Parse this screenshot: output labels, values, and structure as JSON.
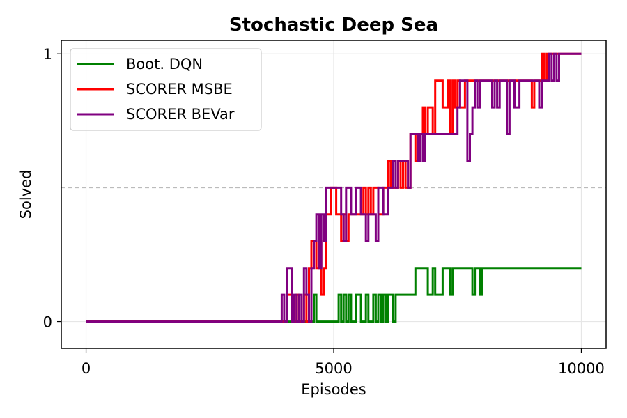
{
  "chart_data": {
    "type": "line",
    "title": "Stochastic Deep Sea",
    "xlabel": "Episodes",
    "ylabel": "Solved",
    "xlim": [
      -500,
      10500
    ],
    "ylim": [
      -0.1,
      1.05
    ],
    "xticks": [
      0,
      5000,
      10000
    ],
    "xtick_labels": [
      "0",
      "5000",
      "10000"
    ],
    "yticks": [
      0,
      1
    ],
    "ytick_labels": [
      "0",
      "1"
    ],
    "grid": true,
    "reference_line": {
      "y": 0.5,
      "style": "dashed",
      "color": "#bbbbbb"
    },
    "legend_position": "upper-left",
    "series": [
      {
        "name": "Boot. DQN",
        "color": "#008000",
        "points": [
          [
            0,
            0
          ],
          [
            4600,
            0
          ],
          [
            4600,
            0.1
          ],
          [
            4650,
            0.1
          ],
          [
            4650,
            0
          ],
          [
            5100,
            0
          ],
          [
            5100,
            0.1
          ],
          [
            5150,
            0.1
          ],
          [
            5150,
            0
          ],
          [
            5200,
            0
          ],
          [
            5200,
            0.1
          ],
          [
            5250,
            0.1
          ],
          [
            5250,
            0
          ],
          [
            5300,
            0
          ],
          [
            5300,
            0.1
          ],
          [
            5350,
            0.1
          ],
          [
            5350,
            0
          ],
          [
            5450,
            0
          ],
          [
            5450,
            0.1
          ],
          [
            5550,
            0.1
          ],
          [
            5550,
            0
          ],
          [
            5650,
            0
          ],
          [
            5650,
            0.1
          ],
          [
            5700,
            0.1
          ],
          [
            5700,
            0
          ],
          [
            5800,
            0
          ],
          [
            5800,
            0.1
          ],
          [
            5850,
            0.1
          ],
          [
            5850,
            0
          ],
          [
            5900,
            0
          ],
          [
            5900,
            0.1
          ],
          [
            5950,
            0.1
          ],
          [
            5950,
            0
          ],
          [
            6000,
            0
          ],
          [
            6000,
            0.1
          ],
          [
            6050,
            0.1
          ],
          [
            6050,
            0
          ],
          [
            6100,
            0
          ],
          [
            6100,
            0.1
          ],
          [
            6200,
            0.1
          ],
          [
            6200,
            0
          ],
          [
            6250,
            0
          ],
          [
            6250,
            0.1
          ],
          [
            6650,
            0.1
          ],
          [
            6650,
            0.2
          ],
          [
            6900,
            0.2
          ],
          [
            6900,
            0.1
          ],
          [
            7000,
            0.1
          ],
          [
            7000,
            0.2
          ],
          [
            7050,
            0.2
          ],
          [
            7050,
            0.1
          ],
          [
            7200,
            0.1
          ],
          [
            7200,
            0.2
          ],
          [
            7350,
            0.2
          ],
          [
            7350,
            0.1
          ],
          [
            7400,
            0.1
          ],
          [
            7400,
            0.2
          ],
          [
            7800,
            0.2
          ],
          [
            7800,
            0.1
          ],
          [
            7850,
            0.1
          ],
          [
            7850,
            0.2
          ],
          [
            7950,
            0.2
          ],
          [
            7950,
            0.1
          ],
          [
            8000,
            0.1
          ],
          [
            8000,
            0.2
          ],
          [
            10000,
            0.2
          ]
        ]
      },
      {
        "name": "SCORER MSBE",
        "color": "#ff0000",
        "points": [
          [
            0,
            0
          ],
          [
            4050,
            0
          ],
          [
            4050,
            0.1
          ],
          [
            4150,
            0.1
          ],
          [
            4150,
            0
          ],
          [
            4250,
            0
          ],
          [
            4250,
            0.1
          ],
          [
            4300,
            0.1
          ],
          [
            4300,
            0
          ],
          [
            4400,
            0
          ],
          [
            4400,
            0.1
          ],
          [
            4450,
            0.1
          ],
          [
            4450,
            0
          ],
          [
            4500,
            0
          ],
          [
            4500,
            0.2
          ],
          [
            4550,
            0.2
          ],
          [
            4550,
            0.3
          ],
          [
            4650,
            0.3
          ],
          [
            4650,
            0.2
          ],
          [
            4700,
            0.2
          ],
          [
            4700,
            0.3
          ],
          [
            4750,
            0.3
          ],
          [
            4750,
            0.1
          ],
          [
            4800,
            0.1
          ],
          [
            4800,
            0.2
          ],
          [
            4850,
            0.2
          ],
          [
            4850,
            0.4
          ],
          [
            4950,
            0.4
          ],
          [
            4950,
            0.5
          ],
          [
            5050,
            0.5
          ],
          [
            5050,
            0.4
          ],
          [
            5150,
            0.4
          ],
          [
            5150,
            0.3
          ],
          [
            5200,
            0.3
          ],
          [
            5200,
            0.4
          ],
          [
            5250,
            0.4
          ],
          [
            5250,
            0.3
          ],
          [
            5300,
            0.3
          ],
          [
            5300,
            0.4
          ],
          [
            5600,
            0.4
          ],
          [
            5600,
            0.5
          ],
          [
            5650,
            0.5
          ],
          [
            5650,
            0.4
          ],
          [
            5700,
            0.4
          ],
          [
            5700,
            0.5
          ],
          [
            5750,
            0.5
          ],
          [
            5750,
            0.4
          ],
          [
            5800,
            0.4
          ],
          [
            5800,
            0.5
          ],
          [
            5900,
            0.5
          ],
          [
            5900,
            0.4
          ],
          [
            6000,
            0.4
          ],
          [
            6000,
            0.5
          ],
          [
            6100,
            0.5
          ],
          [
            6100,
            0.6
          ],
          [
            6150,
            0.6
          ],
          [
            6150,
            0.5
          ],
          [
            6300,
            0.5
          ],
          [
            6300,
            0.6
          ],
          [
            6350,
            0.6
          ],
          [
            6350,
            0.5
          ],
          [
            6400,
            0.5
          ],
          [
            6400,
            0.6
          ],
          [
            6450,
            0.6
          ],
          [
            6450,
            0.5
          ],
          [
            6550,
            0.5
          ],
          [
            6550,
            0.7
          ],
          [
            6650,
            0.7
          ],
          [
            6650,
            0.6
          ],
          [
            6700,
            0.6
          ],
          [
            6700,
            0.7
          ],
          [
            6800,
            0.7
          ],
          [
            6800,
            0.8
          ],
          [
            6850,
            0.8
          ],
          [
            6850,
            0.7
          ],
          [
            6900,
            0.7
          ],
          [
            6900,
            0.8
          ],
          [
            7000,
            0.8
          ],
          [
            7000,
            0.7
          ],
          [
            7050,
            0.7
          ],
          [
            7050,
            0.9
          ],
          [
            7200,
            0.9
          ],
          [
            7200,
            0.8
          ],
          [
            7300,
            0.8
          ],
          [
            7300,
            0.9
          ],
          [
            7350,
            0.9
          ],
          [
            7350,
            0.7
          ],
          [
            7400,
            0.7
          ],
          [
            7400,
            0.9
          ],
          [
            7450,
            0.9
          ],
          [
            7450,
            0.8
          ],
          [
            7500,
            0.8
          ],
          [
            7500,
            0.9
          ],
          [
            7550,
            0.9
          ],
          [
            7550,
            0.8
          ],
          [
            7650,
            0.8
          ],
          [
            7650,
            0.9
          ],
          [
            9000,
            0.9
          ],
          [
            9000,
            0.8
          ],
          [
            9050,
            0.8
          ],
          [
            9050,
            0.9
          ],
          [
            9200,
            0.9
          ],
          [
            9200,
            1
          ],
          [
            9250,
            1
          ],
          [
            9250,
            0.9
          ],
          [
            9300,
            0.9
          ],
          [
            9300,
            1
          ],
          [
            10000,
            1
          ]
        ]
      },
      {
        "name": "SCORER BEVar",
        "color": "#800080",
        "points": [
          [
            0,
            0
          ],
          [
            3950,
            0
          ],
          [
            3950,
            0.1
          ],
          [
            4000,
            0.1
          ],
          [
            4000,
            0
          ],
          [
            4050,
            0
          ],
          [
            4050,
            0.2
          ],
          [
            4150,
            0.2
          ],
          [
            4150,
            0
          ],
          [
            4200,
            0
          ],
          [
            4200,
            0.1
          ],
          [
            4250,
            0.1
          ],
          [
            4250,
            0
          ],
          [
            4300,
            0
          ],
          [
            4300,
            0.1
          ],
          [
            4350,
            0.1
          ],
          [
            4350,
            0
          ],
          [
            4400,
            0
          ],
          [
            4400,
            0.2
          ],
          [
            4450,
            0.2
          ],
          [
            4450,
            0.1
          ],
          [
            4500,
            0.1
          ],
          [
            4500,
            0
          ],
          [
            4550,
            0
          ],
          [
            4550,
            0.2
          ],
          [
            4600,
            0.2
          ],
          [
            4600,
            0.3
          ],
          [
            4650,
            0.3
          ],
          [
            4650,
            0.4
          ],
          [
            4700,
            0.4
          ],
          [
            4700,
            0.2
          ],
          [
            4750,
            0.2
          ],
          [
            4750,
            0.4
          ],
          [
            4800,
            0.4
          ],
          [
            4800,
            0.3
          ],
          [
            4850,
            0.3
          ],
          [
            4850,
            0.5
          ],
          [
            5150,
            0.5
          ],
          [
            5150,
            0.4
          ],
          [
            5200,
            0.4
          ],
          [
            5200,
            0.3
          ],
          [
            5250,
            0.3
          ],
          [
            5250,
            0.5
          ],
          [
            5350,
            0.5
          ],
          [
            5350,
            0.4
          ],
          [
            5450,
            0.4
          ],
          [
            5450,
            0.5
          ],
          [
            5550,
            0.5
          ],
          [
            5550,
            0.4
          ],
          [
            5650,
            0.4
          ],
          [
            5650,
            0.3
          ],
          [
            5700,
            0.3
          ],
          [
            5700,
            0.4
          ],
          [
            5850,
            0.4
          ],
          [
            5850,
            0.3
          ],
          [
            5900,
            0.3
          ],
          [
            5900,
            0.5
          ],
          [
            6000,
            0.5
          ],
          [
            6000,
            0.4
          ],
          [
            6100,
            0.4
          ],
          [
            6100,
            0.5
          ],
          [
            6200,
            0.5
          ],
          [
            6200,
            0.6
          ],
          [
            6250,
            0.6
          ],
          [
            6250,
            0.5
          ],
          [
            6300,
            0.5
          ],
          [
            6300,
            0.6
          ],
          [
            6500,
            0.6
          ],
          [
            6500,
            0.5
          ],
          [
            6550,
            0.5
          ],
          [
            6550,
            0.7
          ],
          [
            6700,
            0.7
          ],
          [
            6700,
            0.6
          ],
          [
            6750,
            0.6
          ],
          [
            6750,
            0.7
          ],
          [
            6800,
            0.7
          ],
          [
            6800,
            0.6
          ],
          [
            6850,
            0.6
          ],
          [
            6850,
            0.7
          ],
          [
            7500,
            0.7
          ],
          [
            7500,
            0.8
          ],
          [
            7550,
            0.8
          ],
          [
            7550,
            0.9
          ],
          [
            7700,
            0.9
          ],
          [
            7700,
            0.6
          ],
          [
            7750,
            0.6
          ],
          [
            7750,
            0.7
          ],
          [
            7800,
            0.7
          ],
          [
            7800,
            0.8
          ],
          [
            7850,
            0.8
          ],
          [
            7850,
            0.9
          ],
          [
            7900,
            0.9
          ],
          [
            7900,
            0.8
          ],
          [
            7950,
            0.8
          ],
          [
            7950,
            0.9
          ],
          [
            8200,
            0.9
          ],
          [
            8200,
            0.8
          ],
          [
            8250,
            0.8
          ],
          [
            8250,
            0.9
          ],
          [
            8300,
            0.9
          ],
          [
            8300,
            0.8
          ],
          [
            8350,
            0.8
          ],
          [
            8350,
            0.9
          ],
          [
            8500,
            0.9
          ],
          [
            8500,
            0.7
          ],
          [
            8550,
            0.7
          ],
          [
            8550,
            0.9
          ],
          [
            8650,
            0.9
          ],
          [
            8650,
            0.8
          ],
          [
            8750,
            0.8
          ],
          [
            8750,
            0.9
          ],
          [
            9150,
            0.9
          ],
          [
            9150,
            0.8
          ],
          [
            9200,
            0.8
          ],
          [
            9200,
            0.9
          ],
          [
            9350,
            0.9
          ],
          [
            9350,
            1
          ],
          [
            9400,
            1
          ],
          [
            9400,
            0.9
          ],
          [
            9450,
            0.9
          ],
          [
            9450,
            1
          ],
          [
            9500,
            1
          ],
          [
            9500,
            0.9
          ],
          [
            9550,
            0.9
          ],
          [
            9550,
            1
          ],
          [
            10000,
            1
          ]
        ]
      }
    ]
  }
}
